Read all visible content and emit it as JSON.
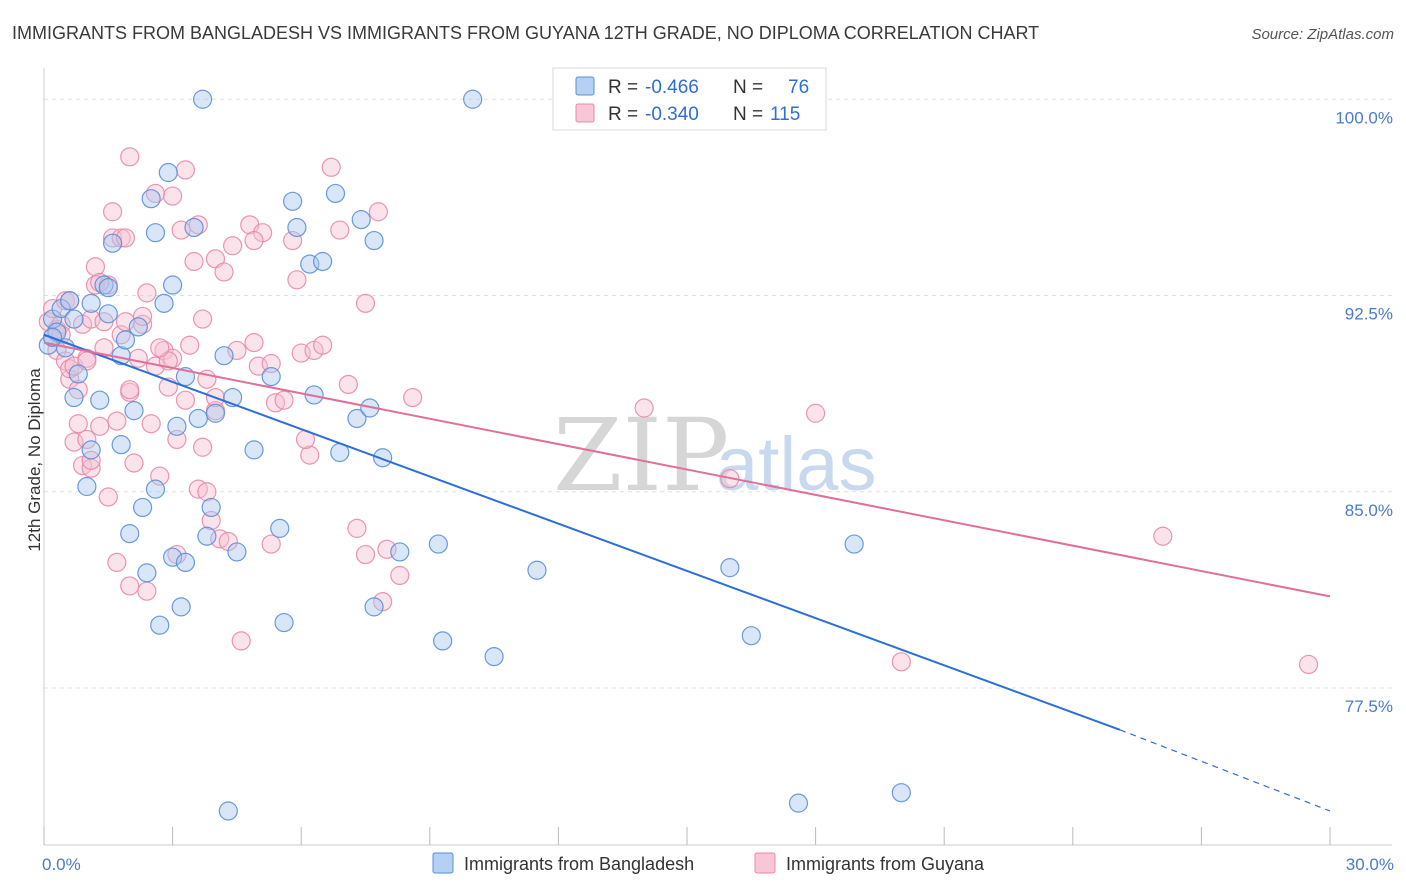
{
  "title": "IMMIGRANTS FROM BANGLADESH VS IMMIGRANTS FROM GUYANA 12TH GRADE, NO DIPLOMA CORRELATION CHART",
  "source": "Source: ZipAtlas.com",
  "watermark": {
    "zip": "ZIP",
    "atlas": "atlas"
  },
  "colors": {
    "blue_fill": "#a9c8f0",
    "blue_stroke": "#5b8fd8",
    "blue_line": "#2c6fd6",
    "pink_fill": "#f6c0d2",
    "pink_stroke": "#e88aaa",
    "pink_line": "#e07099",
    "grid": "#e0e0e0",
    "tick_text": "#4a7cc7"
  },
  "legend": {
    "rows": [
      {
        "r_label": "R = ",
        "r_value": "-0.466",
        "n_label": "N = ",
        "n_value": "76"
      },
      {
        "r_label": "R = ",
        "r_value": "-0.340",
        "n_label": "N = ",
        "n_value": "115"
      }
    ]
  },
  "bottom_legend": [
    "Immigrants from Bangladesh",
    "Immigrants from Guyana"
  ],
  "chart_data": {
    "type": "scatter",
    "title": "IMMIGRANTS FROM BANGLADESH VS IMMIGRANTS FROM GUYANA 12TH GRADE, NO DIPLOMA CORRELATION CHART",
    "xlabel": "",
    "ylabel": "12th Grade, No Diploma",
    "xlim": [
      0,
      30
    ],
    "ylim": [
      71.5,
      101.5
    ],
    "x_tick_labels": [
      {
        "value": 0,
        "label": "0.0%"
      },
      {
        "value": 30,
        "label": "30.0%"
      }
    ],
    "y_ticks": [
      {
        "value": 100,
        "label": "100.0%"
      },
      {
        "value": 92.5,
        "label": "92.5%"
      },
      {
        "value": 85,
        "label": "85.0%"
      },
      {
        "value": 77.5,
        "label": "77.5%"
      }
    ],
    "grid": true,
    "legend_position": "top-center",
    "series": [
      {
        "name": "Immigrants from Bangladesh",
        "R": -0.466,
        "N": 76,
        "trend": {
          "x0": 0,
          "y0": 91.0,
          "x1": 25.1,
          "y1": 75.9,
          "dash_to_x": 30,
          "dash_to_y": 72.8
        },
        "points": [
          [
            0.1,
            90.6
          ],
          [
            0.2,
            91.6
          ],
          [
            0.3,
            91.1
          ],
          [
            0.4,
            92.0
          ],
          [
            0.5,
            90.5
          ],
          [
            0.6,
            92.3
          ],
          [
            0.7,
            88.6
          ],
          [
            0.7,
            91.6
          ],
          [
            0.8,
            89.5
          ],
          [
            1.0,
            85.2
          ],
          [
            1.1,
            86.6
          ],
          [
            1.1,
            92.2
          ],
          [
            1.3,
            88.5
          ],
          [
            1.4,
            92.9
          ],
          [
            1.5,
            92.8
          ],
          [
            1.6,
            94.5
          ],
          [
            1.8,
            90.2
          ],
          [
            1.8,
            86.8
          ],
          [
            1.9,
            90.8
          ],
          [
            2.0,
            83.4
          ],
          [
            2.1,
            88.1
          ],
          [
            2.2,
            91.3
          ],
          [
            2.3,
            84.4
          ],
          [
            2.4,
            81.9
          ],
          [
            2.5,
            96.2
          ],
          [
            2.6,
            85.1
          ],
          [
            2.6,
            94.9
          ],
          [
            2.7,
            79.9
          ],
          [
            2.8,
            92.2
          ],
          [
            2.9,
            97.2
          ],
          [
            3.0,
            82.5
          ],
          [
            3.0,
            92.9
          ],
          [
            3.1,
            87.5
          ],
          [
            3.2,
            80.6
          ],
          [
            3.3,
            89.4
          ],
          [
            3.3,
            82.3
          ],
          [
            3.5,
            95.1
          ],
          [
            3.6,
            87.8
          ],
          [
            3.7,
            100.0
          ],
          [
            3.8,
            83.3
          ],
          [
            3.9,
            84.4
          ],
          [
            4.0,
            88.0
          ],
          [
            4.2,
            90.2
          ],
          [
            4.3,
            72.8
          ],
          [
            4.4,
            88.6
          ],
          [
            4.5,
            82.7
          ],
          [
            4.9,
            86.6
          ],
          [
            5.3,
            89.4
          ],
          [
            5.5,
            83.6
          ],
          [
            5.6,
            80.0
          ],
          [
            5.8,
            96.1
          ],
          [
            5.9,
            95.1
          ],
          [
            6.2,
            93.7
          ],
          [
            6.3,
            88.7
          ],
          [
            6.5,
            93.8
          ],
          [
            6.8,
            96.4
          ],
          [
            6.9,
            86.5
          ],
          [
            7.3,
            87.8
          ],
          [
            7.4,
            95.4
          ],
          [
            7.6,
            88.2
          ],
          [
            7.7,
            94.6
          ],
          [
            7.7,
            80.6
          ],
          [
            7.9,
            86.3
          ],
          [
            8.3,
            82.7
          ],
          [
            9.2,
            83.0
          ],
          [
            9.3,
            79.3
          ],
          [
            10.0,
            100.0
          ],
          [
            10.5,
            78.7
          ],
          [
            11.5,
            82.0
          ],
          [
            16.0,
            82.1
          ],
          [
            16.5,
            79.5
          ],
          [
            17.6,
            73.1
          ],
          [
            18.9,
            83.0
          ],
          [
            20.0,
            73.5
          ],
          [
            0.2,
            90.9
          ],
          [
            1.5,
            91.8
          ]
        ]
      },
      {
        "name": "Immigrants from Guyana",
        "R": -0.34,
        "N": 115,
        "trend": {
          "x0": 0,
          "y0": 90.7,
          "x1": 30,
          "y1": 81.0
        },
        "points": [
          [
            0.1,
            91.5
          ],
          [
            0.2,
            90.9
          ],
          [
            0.2,
            92.0
          ],
          [
            0.3,
            91.2
          ],
          [
            0.3,
            90.4
          ],
          [
            0.4,
            91.4
          ],
          [
            0.5,
            92.3
          ],
          [
            0.5,
            90.0
          ],
          [
            0.6,
            89.3
          ],
          [
            0.6,
            89.7
          ],
          [
            0.7,
            86.9
          ],
          [
            0.7,
            89.8
          ],
          [
            0.8,
            87.6
          ],
          [
            0.8,
            88.9
          ],
          [
            0.9,
            91.4
          ],
          [
            0.9,
            86.0
          ],
          [
            1.0,
            90.1
          ],
          [
            1.0,
            87.0
          ],
          [
            1.1,
            91.6
          ],
          [
            1.1,
            85.9
          ],
          [
            1.1,
            86.2
          ],
          [
            1.2,
            92.9
          ],
          [
            1.2,
            93.6
          ],
          [
            1.3,
            87.5
          ],
          [
            1.4,
            90.5
          ],
          [
            1.4,
            91.5
          ],
          [
            1.5,
            84.8
          ],
          [
            1.6,
            95.7
          ],
          [
            1.6,
            94.7
          ],
          [
            1.7,
            87.7
          ],
          [
            1.7,
            82.3
          ],
          [
            1.8,
            91.0
          ],
          [
            1.8,
            94.7
          ],
          [
            1.9,
            94.7
          ],
          [
            1.9,
            91.5
          ],
          [
            2.0,
            97.8
          ],
          [
            2.0,
            88.8
          ],
          [
            2.0,
            81.4
          ],
          [
            2.1,
            86.1
          ],
          [
            2.2,
            90.1
          ],
          [
            2.3,
            91.4
          ],
          [
            2.3,
            91.7
          ],
          [
            2.4,
            81.2
          ],
          [
            2.4,
            92.6
          ],
          [
            2.5,
            87.6
          ],
          [
            2.6,
            96.4
          ],
          [
            2.6,
            89.8
          ],
          [
            2.7,
            85.6
          ],
          [
            2.8,
            90.4
          ],
          [
            2.9,
            89.0
          ],
          [
            3.0,
            96.3
          ],
          [
            3.0,
            90.1
          ],
          [
            3.1,
            87.0
          ],
          [
            3.1,
            82.6
          ],
          [
            3.2,
            95.0
          ],
          [
            3.3,
            88.5
          ],
          [
            3.3,
            97.3
          ],
          [
            3.4,
            90.6
          ],
          [
            3.5,
            93.8
          ],
          [
            3.6,
            95.2
          ],
          [
            3.6,
            85.1
          ],
          [
            3.7,
            91.6
          ],
          [
            3.7,
            86.7
          ],
          [
            3.8,
            89.3
          ],
          [
            3.9,
            83.9
          ],
          [
            4.0,
            93.9
          ],
          [
            4.0,
            88.1
          ],
          [
            4.1,
            83.2
          ],
          [
            4.2,
            93.4
          ],
          [
            4.3,
            83.1
          ],
          [
            4.4,
            94.4
          ],
          [
            4.5,
            90.4
          ],
          [
            4.6,
            79.3
          ],
          [
            4.8,
            95.2
          ],
          [
            4.9,
            90.7
          ],
          [
            5.0,
            89.8
          ],
          [
            5.1,
            94.9
          ],
          [
            5.3,
            89.9
          ],
          [
            5.3,
            83.0
          ],
          [
            5.4,
            88.4
          ],
          [
            5.6,
            88.5
          ],
          [
            5.8,
            94.6
          ],
          [
            6.0,
            90.3
          ],
          [
            6.2,
            86.4
          ],
          [
            6.3,
            90.4
          ],
          [
            6.5,
            90.6
          ],
          [
            6.7,
            97.4
          ],
          [
            6.9,
            95.0
          ],
          [
            7.1,
            89.1
          ],
          [
            7.3,
            83.6
          ],
          [
            7.5,
            92.2
          ],
          [
            7.5,
            82.6
          ],
          [
            7.8,
            95.7
          ],
          [
            7.9,
            80.8
          ],
          [
            8.0,
            82.8
          ],
          [
            8.3,
            81.8
          ],
          [
            8.6,
            88.6
          ],
          [
            14.0,
            88.2
          ],
          [
            16.0,
            85.5
          ],
          [
            18.0,
            88.0
          ],
          [
            20.0,
            78.5
          ],
          [
            26.1,
            83.3
          ],
          [
            29.5,
            78.4
          ],
          [
            5.9,
            93.1
          ],
          [
            6.1,
            87.0
          ],
          [
            1.5,
            92.9
          ],
          [
            2.9,
            90.0
          ],
          [
            4.0,
            88.6
          ],
          [
            0.4,
            91.0
          ],
          [
            2.0,
            88.9
          ],
          [
            3.8,
            85.0
          ],
          [
            4.9,
            94.6
          ],
          [
            1.3,
            93.0
          ],
          [
            0.6,
            92.3
          ],
          [
            2.7,
            90.5
          ],
          [
            1.0,
            90.0
          ]
        ]
      }
    ]
  }
}
